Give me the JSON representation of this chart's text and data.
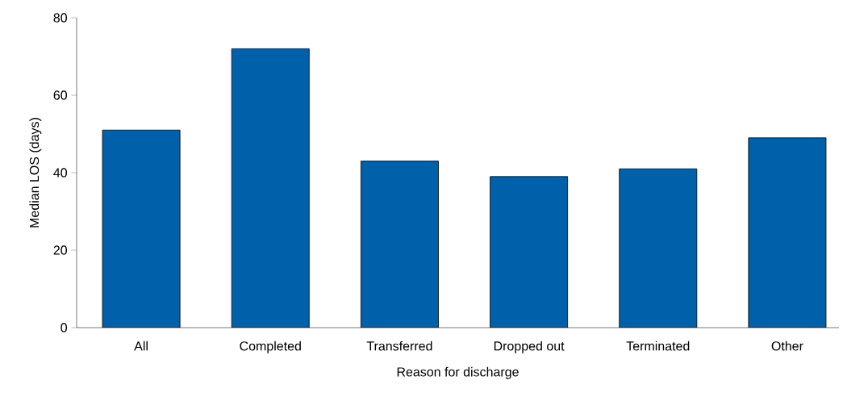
{
  "chart_data": {
    "type": "bar",
    "xlabel": "Reason for discharge",
    "ylabel": "Median LOS (days)",
    "categories": [
      "All",
      "Completed",
      "Transferred",
      "Dropped out",
      "Terminated",
      "Other"
    ],
    "values": [
      51,
      72,
      43,
      39,
      41,
      49
    ],
    "color": "#0060aa",
    "ylim": [
      0,
      80
    ],
    "yticks": [
      0,
      20,
      40,
      60,
      80
    ]
  }
}
